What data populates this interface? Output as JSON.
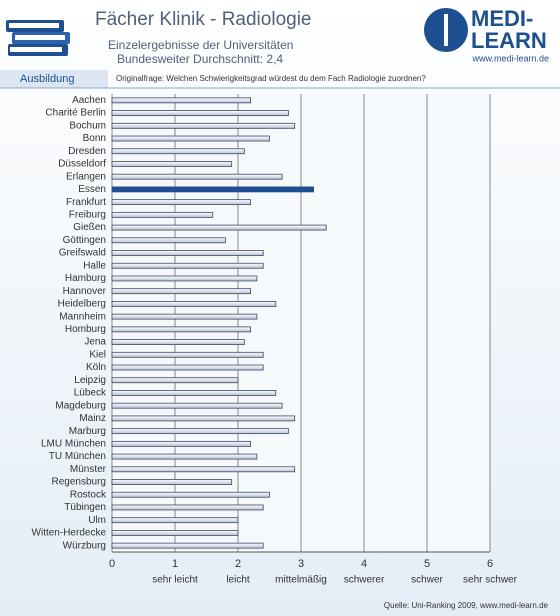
{
  "header": {
    "title": "Fächer Klinik - Radiologie",
    "subtitle_1": "Einzelergebnisse der Universitäten",
    "subtitle_2": "Bundesweiter Durchschnitt: 2,4",
    "logo_top": "MEDI-",
    "logo_bottom": "LEARN",
    "logo_url": "www.medi-learn.de",
    "tab": "Ausbildung",
    "question": "Originalfrage: Welchen Schwierigkeitsgrad würdest du dem Fach Radiologie zuordnen?"
  },
  "footer": {
    "source": "Quelle: Uni-Ranking 2009, www.medi-learn.de"
  },
  "chart_data": {
    "type": "hbar",
    "categories": [
      "Aachen",
      "Charité Berlin",
      "Bochum",
      "Bonn",
      "Dresden",
      "Düsseldorf",
      "Erlangen",
      "Essen",
      "Frankfurt",
      "Freiburg",
      "Gießen",
      "Göttingen",
      "Greifswald",
      "Halle",
      "Hamburg",
      "Hannover",
      "Heidelberg",
      "Mannheim",
      "Homburg",
      "Jena",
      "Kiel",
      "Köln",
      "Leipzig",
      "Lübeck",
      "Magdeburg",
      "Mainz",
      "Marburg",
      "LMU München",
      "TU München",
      "Münster",
      "Regensburg",
      "Rostock",
      "Tübingen",
      "Ulm",
      "Witten-Herdecke",
      "Würzburg"
    ],
    "values": [
      2.2,
      2.8,
      2.9,
      2.5,
      2.1,
      1.9,
      2.7,
      3.2,
      2.2,
      1.6,
      3.4,
      1.8,
      2.4,
      2.4,
      2.3,
      2.2,
      2.6,
      2.3,
      2.2,
      2.1,
      2.4,
      2.4,
      2.0,
      2.6,
      2.7,
      2.9,
      2.8,
      2.2,
      2.3,
      2.9,
      1.9,
      2.5,
      2.4,
      2.0,
      2.0,
      2.4
    ],
    "color": "#dde3ee",
    "highlight_index": 7,
    "highlight_color": "#1e4f91",
    "xlim": [
      0,
      6
    ],
    "xticks": [
      0,
      1,
      2,
      3,
      4,
      5,
      6
    ],
    "grid": true,
    "scale_labels": [
      {
        "value": 1,
        "label": "sehr leicht"
      },
      {
        "value": 2,
        "label": "leicht"
      },
      {
        "value": 3,
        "label": "mittelmäßig"
      },
      {
        "value": 4,
        "label": "schwerer"
      },
      {
        "value": 5,
        "label": "schwer"
      },
      {
        "value": 6,
        "label": "sehr schwer"
      }
    ]
  }
}
